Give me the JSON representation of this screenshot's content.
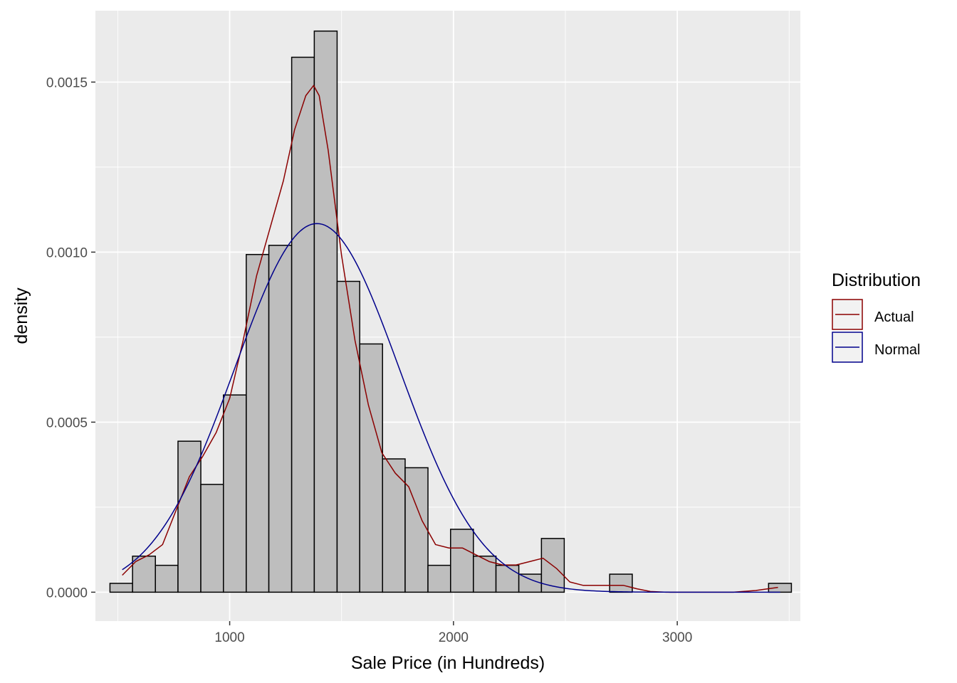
{
  "chart_data": {
    "type": "bar",
    "overlay_types": [
      "histogram",
      "line"
    ],
    "xlabel": "Sale Price (in Hundreds)",
    "ylabel": "density",
    "xlim": [
      400,
      3550
    ],
    "ylim": [
      -8.5e-05,
      0.00171
    ],
    "x_ticks": [
      1000,
      2000,
      3000
    ],
    "x_tick_labels": [
      "1000",
      "2000",
      "3000"
    ],
    "y_ticks": [
      0,
      0.0005,
      0.001,
      0.0015
    ],
    "y_tick_labels": [
      "0.0000",
      "0.0005",
      "0.0010",
      "0.0015"
    ],
    "grid": true,
    "panel_color": "#EBEBEB",
    "bar_fill": "#BEBEBE",
    "bar_outline": "#000000",
    "histogram": {
      "bins": [
        [
          465,
          566,
          2.6e-05
        ],
        [
          566,
          668,
          0.000106
        ],
        [
          668,
          769,
          7.9e-05
        ],
        [
          769,
          871,
          0.000444
        ],
        [
          871,
          972,
          0.000317
        ],
        [
          972,
          1074,
          0.00058
        ],
        [
          1074,
          1175,
          0.000993
        ],
        [
          1175,
          1277,
          0.00102
        ],
        [
          1277,
          1378,
          0.001573
        ],
        [
          1378,
          1480,
          0.00165
        ],
        [
          1480,
          1581,
          0.000914
        ],
        [
          1581,
          1683,
          0.00073
        ],
        [
          1683,
          1784,
          0.000392
        ],
        [
          1784,
          1886,
          0.000366
        ],
        [
          1886,
          1987,
          7.9e-05
        ],
        [
          1987,
          2089,
          0.000185
        ],
        [
          2089,
          2190,
          0.000106
        ],
        [
          2190,
          2292,
          7.9e-05
        ],
        [
          2292,
          2393,
          5.3e-05
        ],
        [
          2393,
          2495,
          0.000158
        ],
        [
          2495,
          2596,
          0
        ],
        [
          2596,
          2698,
          0
        ],
        [
          2698,
          2799,
          5.3e-05
        ],
        [
          2799,
          2901,
          0
        ],
        [
          2901,
          3002,
          0
        ],
        [
          3002,
          3104,
          0
        ],
        [
          3104,
          3205,
          0
        ],
        [
          3205,
          3307,
          0
        ],
        [
          3307,
          3408,
          0
        ],
        [
          3408,
          3510,
          2.6e-05
        ]
      ]
    },
    "legend": {
      "title": "Distribution",
      "position": "right",
      "entries": [
        "Actual",
        "Normal"
      ]
    },
    "series": [
      {
        "name": "Actual",
        "color": "#8B0000",
        "x": [
          520,
          580,
          640,
          700,
          760,
          820,
          880,
          940,
          1000,
          1060,
          1120,
          1180,
          1240,
          1290,
          1340,
          1375,
          1400,
          1440,
          1500,
          1560,
          1620,
          1680,
          1740,
          1800,
          1860,
          1920,
          1980,
          2040,
          2100,
          2160,
          2220,
          2280,
          2340,
          2400,
          2460,
          2520,
          2580,
          2640,
          2700,
          2760,
          2820,
          2880,
          2950,
          3050,
          3150,
          3250,
          3350,
          3450
        ],
        "y": [
          5e-05,
          9e-05,
          0.00011,
          0.00014,
          0.00024,
          0.00034,
          0.0004,
          0.00047,
          0.00057,
          0.00074,
          0.00093,
          0.00107,
          0.00121,
          0.00136,
          0.00146,
          0.00149,
          0.00146,
          0.0013,
          0.00099,
          0.00074,
          0.00055,
          0.00041,
          0.00035,
          0.00031,
          0.00021,
          0.00014,
          0.00013,
          0.00013,
          0.00011,
          9e-05,
          8e-05,
          8e-05,
          9e-05,
          0.0001,
          7e-05,
          3e-05,
          2e-05,
          2e-05,
          2e-05,
          2e-05,
          1e-05,
          2e-06,
          0,
          0,
          0,
          0,
          5e-06,
          1.4e-05
        ]
      },
      {
        "name": "Normal",
        "color": "#00008B",
        "mean": 1390,
        "sd": 368,
        "x_range": [
          520,
          3460
        ]
      }
    ]
  }
}
